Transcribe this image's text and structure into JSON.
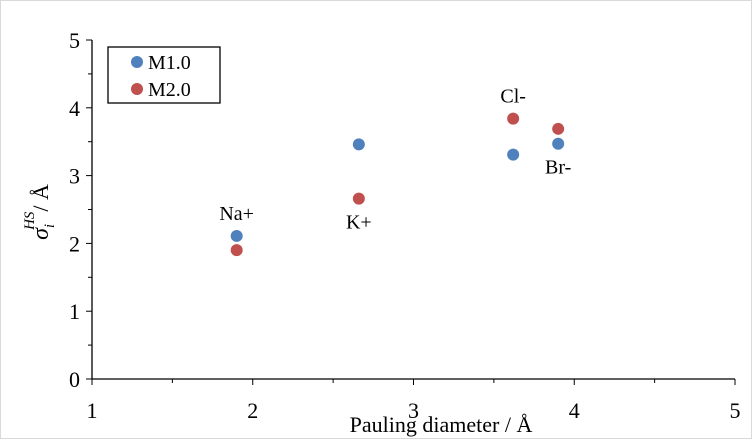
{
  "chart_data": {
    "type": "scatter",
    "xlabel": "Pauling diameter / Å",
    "ylabel_main": "σ",
    "ylabel_super": "HS",
    "ylabel_sub": "i",
    "ylabel_unit": "/ Å",
    "xlim": [
      1,
      5
    ],
    "ylim": [
      0,
      5
    ],
    "xticks": [
      "1",
      "2",
      "3",
      "4",
      "5"
    ],
    "yticks": [
      "0",
      "1",
      "2",
      "3",
      "4",
      "5"
    ],
    "grid": false,
    "legend_position": "top-left",
    "series": [
      {
        "name": "M1.0",
        "color": "#4f81bd",
        "points": [
          {
            "x": 1.9,
            "y": 2.11
          },
          {
            "x": 2.66,
            "y": 3.46
          },
          {
            "x": 3.62,
            "y": 3.31
          },
          {
            "x": 3.9,
            "y": 3.47
          }
        ]
      },
      {
        "name": "M2.0",
        "color": "#c0504d",
        "points": [
          {
            "x": 1.9,
            "y": 1.9
          },
          {
            "x": 2.66,
            "y": 2.66
          },
          {
            "x": 3.62,
            "y": 3.84
          },
          {
            "x": 3.9,
            "y": 3.69
          }
        ]
      }
    ],
    "annotations": [
      {
        "text": "Na+",
        "x": 1.9,
        "y": 2.11,
        "placement": "above"
      },
      {
        "text": "K+",
        "x": 2.66,
        "y": 2.66,
        "placement": "below"
      },
      {
        "text": "Cl-",
        "x": 3.62,
        "y": 3.84,
        "placement": "above"
      },
      {
        "text": "Br-",
        "x": 3.9,
        "y": 3.47,
        "placement": "below"
      }
    ]
  }
}
